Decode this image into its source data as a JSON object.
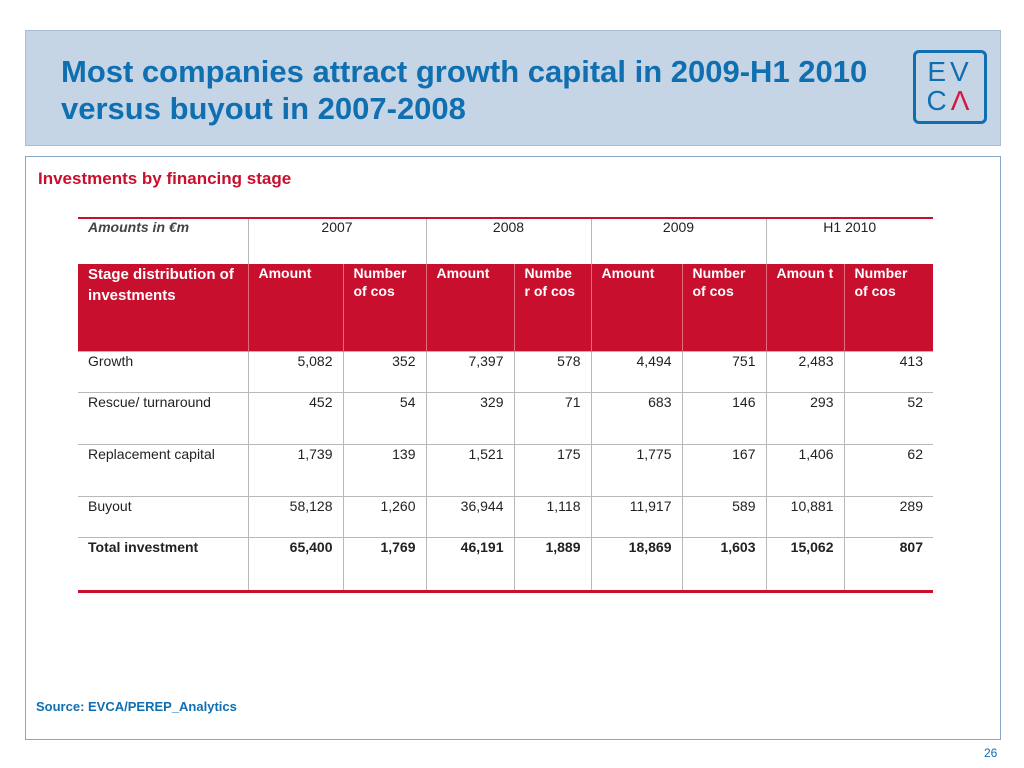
{
  "header": {
    "title": "Most companies attract growth capital in 2009-H1 2010 versus buyout in 2007-2008",
    "logo_line1": "EV",
    "logo_line2": "CΛ",
    "title_color": "#0f6fb0",
    "band_color": "#c5d5e6"
  },
  "section": {
    "title": "Investments by financing stage",
    "accent_color": "#c8102e"
  },
  "table": {
    "amounts_label": "Amounts in €m",
    "years": [
      "2007",
      "2008",
      "2009",
      "H1 2010"
    ],
    "stage_header": "Stage distribution of investments",
    "column_headers": [
      "Amount",
      "Number of cos",
      "Amount",
      "Numbe r of cos",
      "Amount",
      "Number of cos",
      "Amoun t",
      "Number of cos"
    ],
    "rows": [
      {
        "label": "Growth",
        "values": [
          "5,082",
          "352",
          "7,397",
          "578",
          "4,494",
          "751",
          "2,483",
          "413"
        ]
      },
      {
        "label": "Rescue/ turnaround",
        "values": [
          "452",
          "54",
          "329",
          "71",
          "683",
          "146",
          "293",
          "52"
        ]
      },
      {
        "label": "Replacement capital",
        "values": [
          "1,739",
          "139",
          "1,521",
          "175",
          "1,775",
          "167",
          "1,406",
          "62"
        ]
      },
      {
        "label": "Buyout",
        "values": [
          "58,128",
          "1,260",
          "36,944",
          "1,118",
          "11,917",
          "589",
          "10,881",
          "289"
        ]
      },
      {
        "label": "Total investment",
        "values": [
          "65,400",
          "1,769",
          "46,191",
          "1,889",
          "18,869",
          "1,603",
          "15,062",
          "807"
        ]
      }
    ]
  },
  "source": "Source: EVCA/PEREP_Analytics",
  "page_number": "26"
}
